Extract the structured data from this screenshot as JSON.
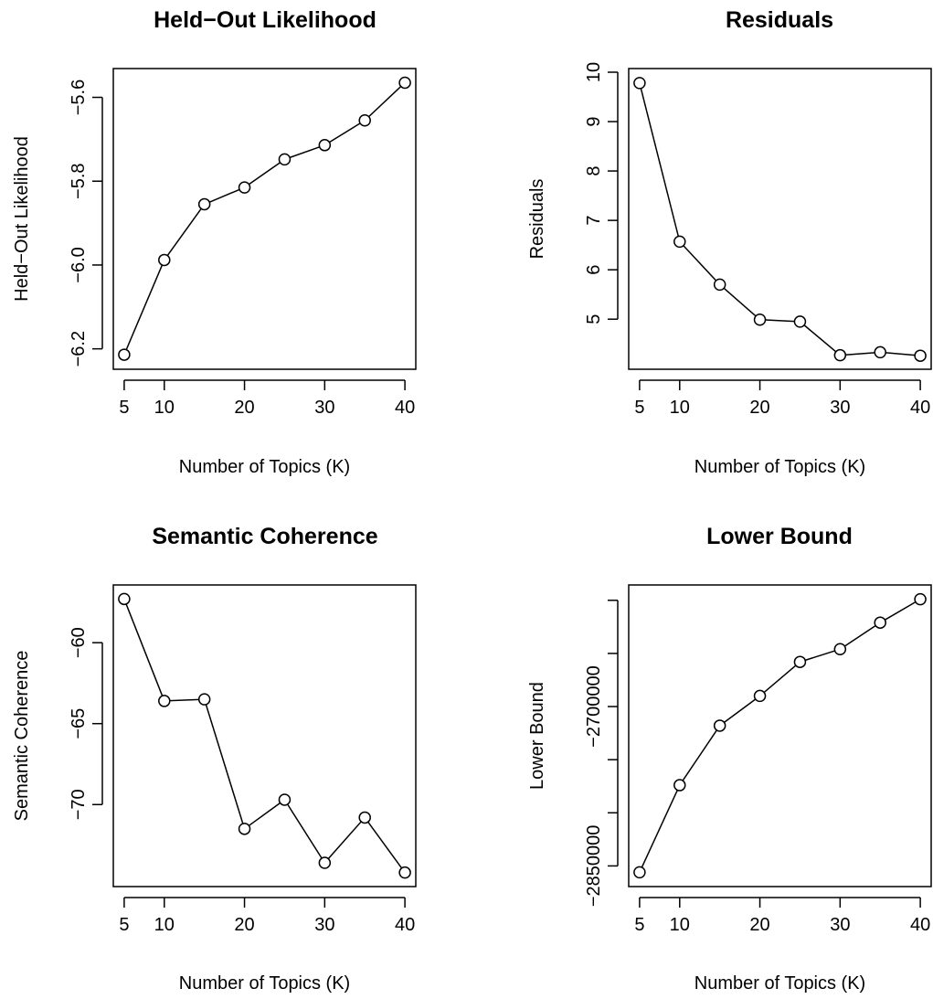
{
  "chart_data": [
    {
      "type": "line",
      "title": "Held−Out Likelihood",
      "xlabel": "Number of Topics (K)",
      "ylabel": "Held−Out Likelihood",
      "x": [
        5,
        10,
        15,
        20,
        25,
        30,
        35,
        40
      ],
      "values": [
        -6.214,
        -5.988,
        -5.855,
        -5.815,
        -5.748,
        -5.714,
        -5.655,
        -5.565
      ],
      "xticks": [
        5,
        10,
        20,
        30,
        40
      ],
      "xtick_labels": [
        "5",
        "10",
        "20",
        "30",
        "40"
      ],
      "yticks": [
        -6.2,
        -6.0,
        -5.8,
        -5.6
      ],
      "ytick_labels": [
        "−6.2",
        "−6.0",
        "−5.8",
        "−5.6"
      ],
      "xlim": [
        4.1,
        40.9
      ],
      "ylim": [
        -6.24,
        -5.54
      ]
    },
    {
      "type": "line",
      "title": "Residuals",
      "xlabel": "Number of Topics (K)",
      "ylabel": "Residuals",
      "x": [
        5,
        10,
        15,
        20,
        25,
        30,
        35,
        40
      ],
      "values": [
        9.78,
        6.57,
        5.7,
        4.99,
        4.95,
        4.27,
        4.33,
        4.26
      ],
      "xticks": [
        5,
        10,
        20,
        30,
        40
      ],
      "xtick_labels": [
        "5",
        "10",
        "20",
        "30",
        "40"
      ],
      "yticks": [
        5,
        6,
        7,
        8,
        9,
        10
      ],
      "ytick_labels": [
        "5",
        "6",
        "7",
        "8",
        "9",
        "10"
      ],
      "xlim": [
        4.1,
        40.9
      ],
      "ylim": [
        4.06,
        10.0
      ]
    },
    {
      "type": "line",
      "title": "Semantic Coherence",
      "xlabel": "Number of Topics (K)",
      "ylabel": "Semantic Coherence",
      "x": [
        5,
        10,
        15,
        20,
        25,
        30,
        35,
        40
      ],
      "values": [
        -57.3,
        -63.6,
        -63.5,
        -71.5,
        -69.7,
        -73.6,
        -70.8,
        -74.2
      ],
      "xticks": [
        5,
        10,
        20,
        30,
        40
      ],
      "xtick_labels": [
        "5",
        "10",
        "20",
        "30",
        "40"
      ],
      "yticks": [
        -60,
        -65,
        -70
      ],
      "ytick_labels": [
        "−60",
        "−65",
        "−70"
      ],
      "xlim": [
        4.1,
        40.9
      ],
      "ylim": [
        -74.84,
        -56.66
      ]
    },
    {
      "type": "line",
      "title": "Lower Bound",
      "xlabel": "Number of Topics (K)",
      "ylabel": "Lower Bound",
      "x": [
        5,
        10,
        15,
        20,
        25,
        30,
        35,
        40
      ],
      "values": [
        -2856000,
        -2774000,
        -2718000,
        -2690000,
        -2658000,
        -2646000,
        -2621000,
        -2599000
      ],
      "xticks": [
        5,
        10,
        20,
        30,
        40
      ],
      "xtick_labels": [
        "5",
        "10",
        "20",
        "30",
        "40"
      ],
      "yticks": [
        -2850000,
        -2800000,
        -2750000,
        -2700000,
        -2650000,
        -2600000
      ],
      "ytick_labels": [
        "−2850000",
        "",
        "",
        "−2700000",
        "",
        ""
      ],
      "xlim": [
        4.1,
        40.9
      ],
      "ylim": [
        -2866000,
        -2589000
      ]
    }
  ]
}
